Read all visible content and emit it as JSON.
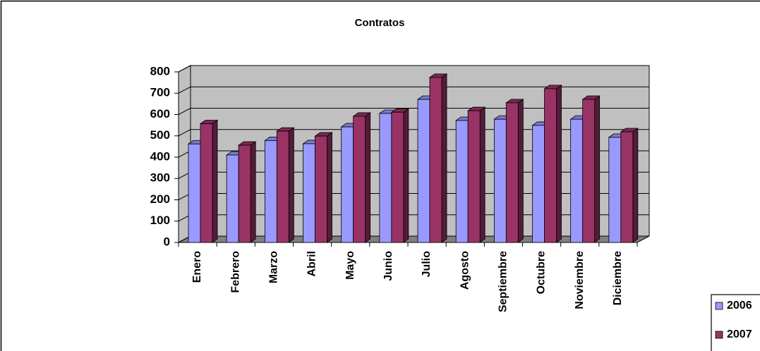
{
  "chart_data": {
    "type": "bar3d",
    "title": "Contratos",
    "categories": [
      "Enero",
      "Febrero",
      "Marzo",
      "Abril",
      "Mayo",
      "Junio",
      "Julio",
      "Agosto",
      "Septiembre",
      "Octubre",
      "Noviembre",
      "Diciembre"
    ],
    "series": [
      {
        "name": "2006",
        "color": "#9999ff",
        "values": [
          462,
          410,
          478,
          463,
          542,
          605,
          671,
          572,
          578,
          549,
          578,
          493
        ]
      },
      {
        "name": "2007",
        "color": "#993366",
        "values": [
          557,
          456,
          522,
          499,
          592,
          611,
          774,
          618,
          655,
          721,
          671,
          519
        ]
      }
    ],
    "ylim": [
      0,
      800
    ],
    "yticks": [
      0,
      100,
      200,
      300,
      400,
      500,
      600,
      700,
      800
    ],
    "grid": true
  }
}
